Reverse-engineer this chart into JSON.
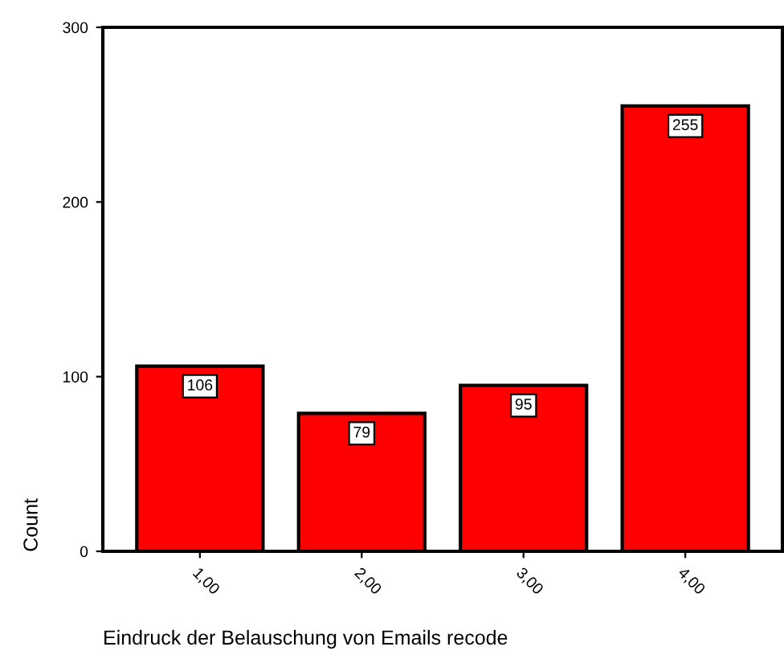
{
  "chart_data": {
    "type": "bar",
    "xlabel": "Eindruck der Belauschung von Emails recode",
    "ylabel": "Count",
    "categories": [
      "1,00",
      "2,00",
      "3,00",
      "4,00"
    ],
    "values": [
      106,
      79,
      95,
      255
    ],
    "color": "#ff0000",
    "ylim": [
      0,
      300
    ],
    "yticks": [
      0,
      100,
      200,
      300
    ],
    "grid": false,
    "data_labels": true
  }
}
